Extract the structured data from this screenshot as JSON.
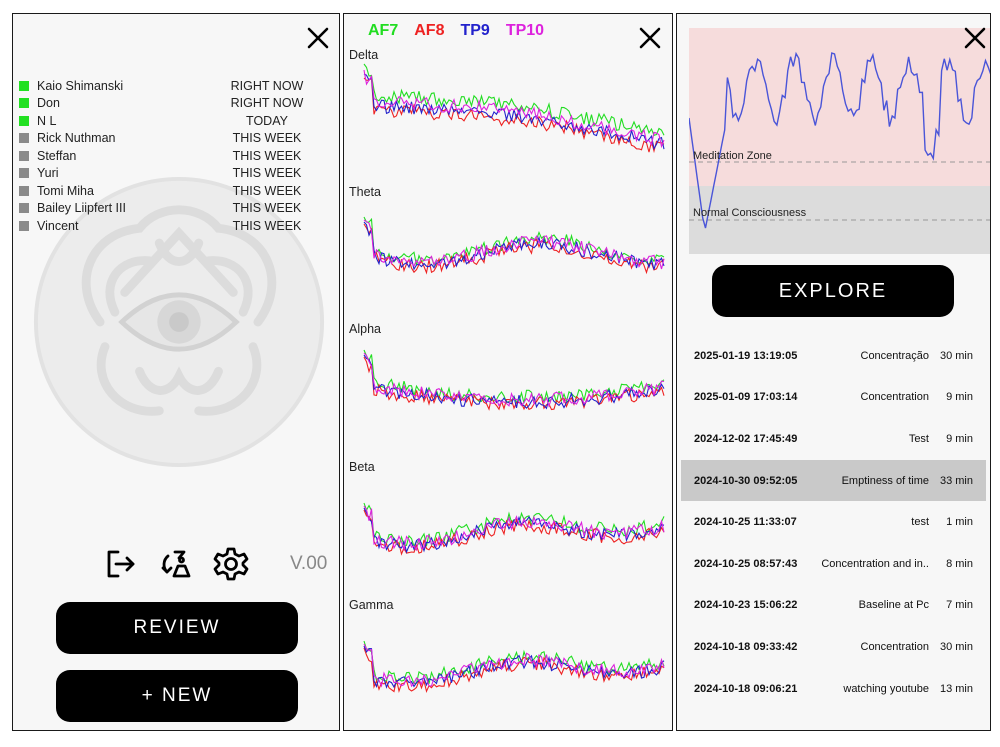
{
  "colors": {
    "online": "#22e022",
    "offline": "#8a8a8a",
    "af7": "#22dd22",
    "af8": "#ee2222",
    "tp9": "#2222cc",
    "tp10": "#dd22dd",
    "meditation_zone": "#f6dcdc",
    "normal_zone": "#dcdcdc",
    "selected_row": "#c9c9c9"
  },
  "contacts": {
    "users": [
      {
        "name": "Kaio Shimanski",
        "when": "RIGHT NOW",
        "status": "online"
      },
      {
        "name": "Don",
        "when": "RIGHT NOW",
        "status": "online"
      },
      {
        "name": "N L",
        "when": "TODAY",
        "status": "online"
      },
      {
        "name": "Rick Nuthman",
        "when": "THIS WEEK",
        "status": "offline"
      },
      {
        "name": "Steffan",
        "when": "THIS WEEK",
        "status": "offline"
      },
      {
        "name": "Yuri",
        "when": "THIS WEEK",
        "status": "offline"
      },
      {
        "name": "Tomi Miha",
        "when": "THIS WEEK",
        "status": "offline"
      },
      {
        "name": "Bailey Liipfert III",
        "when": "THIS WEEK",
        "status": "offline"
      },
      {
        "name": "Vincent",
        "when": "THIS WEEK",
        "status": "offline"
      }
    ],
    "version": "V.00",
    "review_label": "REVIEW",
    "new_label": "+ NEW",
    "icons": [
      "logout-icon",
      "sync-icon",
      "gear-icon",
      "close-icon"
    ]
  },
  "eeg": {
    "channels": [
      "AF7",
      "AF8",
      "TP9",
      "TP10"
    ],
    "bands": [
      "Delta",
      "Theta",
      "Alpha",
      "Beta",
      "Gamma"
    ]
  },
  "history": {
    "zones": {
      "meditation": "Meditation Zone",
      "normal": "Normal Consciousness"
    },
    "explore_label": "EXPLORE",
    "sessions": [
      {
        "date": "2025-01-19 13:19:05",
        "name": "Concentração",
        "duration": "30 min"
      },
      {
        "date": "2025-01-09 17:03:14",
        "name": "Concentration",
        "duration": "9 min"
      },
      {
        "date": "2024-12-02 17:45:49",
        "name": "Test",
        "duration": "9 min"
      },
      {
        "date": "2024-10-30 09:52:05",
        "name": "Emptiness of time",
        "duration": "33 min",
        "selected": true
      },
      {
        "date": "2024-10-25 11:33:07",
        "name": "test",
        "duration": "1 min"
      },
      {
        "date": "2024-10-25 08:57:43",
        "name": "Concentration and in..",
        "duration": "8 min"
      },
      {
        "date": "2024-10-23 15:06:22",
        "name": "Baseline at Pc",
        "duration": "7 min"
      },
      {
        "date": "2024-10-18 09:33:42",
        "name": "Concentration",
        "duration": "30 min"
      },
      {
        "date": "2024-10-18 09:06:21",
        "name": "watching youtube",
        "duration": "13 min"
      }
    ]
  }
}
